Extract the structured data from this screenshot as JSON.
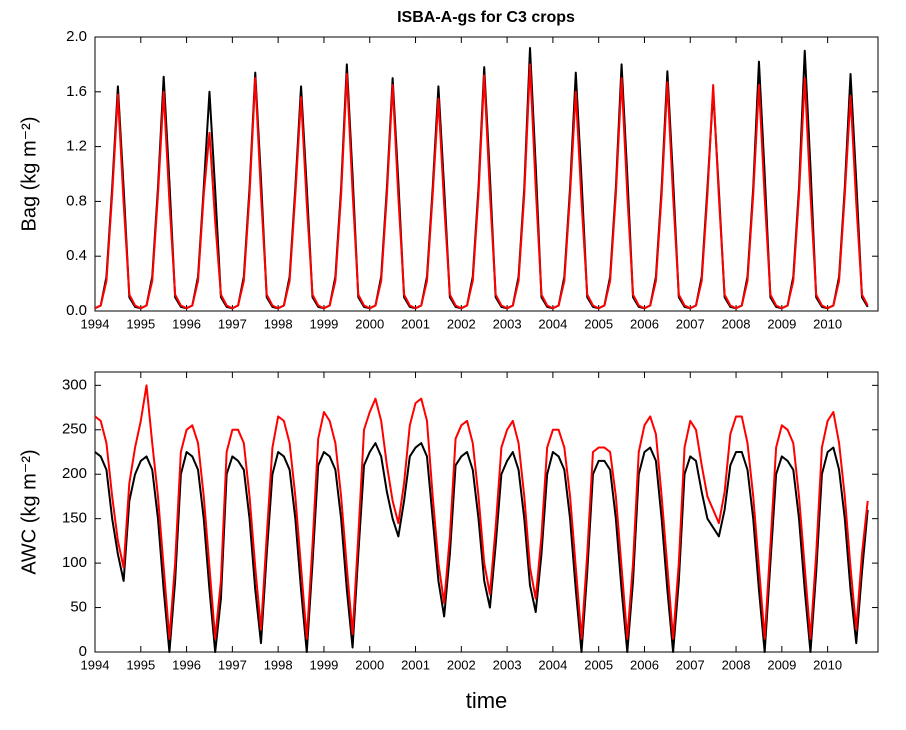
{
  "chart_data": [
    {
      "type": "line",
      "title": "ISBA-A-gs for C3 crops",
      "ylabel": "Bag (kg m⁻²)",
      "xlim": [
        1994,
        2011.1
      ],
      "xticks": [
        1994,
        1995,
        1996,
        1997,
        1998,
        1999,
        2000,
        2001,
        2002,
        2003,
        2004,
        2005,
        2006,
        2007,
        2008,
        2009,
        2010
      ],
      "ylim": [
        0,
        2
      ],
      "yticks": [
        {
          "value": 0,
          "label": "0.0"
        },
        0.4,
        0.8,
        1.2,
        1.6,
        {
          "value": 2,
          "label": "2.0"
        }
      ],
      "x": [
        1994,
        1994.125,
        1994.25,
        1994.375,
        1994.5,
        1994.625,
        1994.75,
        1994.875,
        1995,
        1995.125,
        1995.25,
        1995.375,
        1995.5,
        1995.625,
        1995.75,
        1995.875,
        1996,
        1996.125,
        1996.25,
        1996.375,
        1996.5,
        1996.625,
        1996.75,
        1996.875,
        1997,
        1997.125,
        1997.25,
        1997.375,
        1997.5,
        1997.625,
        1997.75,
        1997.875,
        1998,
        1998.125,
        1998.25,
        1998.375,
        1998.5,
        1998.625,
        1998.75,
        1998.875,
        1999,
        1999.125,
        1999.25,
        1999.375,
        1999.5,
        1999.625,
        1999.75,
        1999.875,
        2000,
        2000.125,
        2000.25,
        2000.375,
        2000.5,
        2000.625,
        2000.75,
        2000.875,
        2001,
        2001.125,
        2001.25,
        2001.375,
        2001.5,
        2001.625,
        2001.75,
        2001.875,
        2002,
        2002.125,
        2002.25,
        2002.375,
        2002.5,
        2002.625,
        2002.75,
        2002.875,
        2003,
        2003.125,
        2003.25,
        2003.375,
        2003.5,
        2003.625,
        2003.75,
        2003.875,
        2004,
        2004.125,
        2004.25,
        2004.375,
        2004.5,
        2004.625,
        2004.75,
        2004.875,
        2005,
        2005.125,
        2005.25,
        2005.375,
        2005.5,
        2005.625,
        2005.75,
        2005.875,
        2006,
        2006.125,
        2006.25,
        2006.375,
        2006.5,
        2006.625,
        2006.75,
        2006.875,
        2007,
        2007.125,
        2007.25,
        2007.375,
        2007.5,
        2007.625,
        2007.75,
        2007.875,
        2008,
        2008.125,
        2008.25,
        2008.375,
        2008.5,
        2008.625,
        2008.75,
        2008.875,
        2009,
        2009.125,
        2009.25,
        2009.375,
        2009.5,
        2009.625,
        2009.75,
        2009.875,
        2010,
        2010.125,
        2010.25,
        2010.375,
        2010.5,
        2010.625,
        2010.75,
        2010.875
      ],
      "series": [
        {
          "color": "#000000",
          "values": [
            0.02,
            0.04,
            0.25,
            0.9,
            1.64,
            0.9,
            0.1,
            0.03,
            0.02,
            0.04,
            0.25,
            0.9,
            1.71,
            0.94,
            0.1,
            0.03,
            0.02,
            0.04,
            0.25,
            0.9,
            1.6,
            0.88,
            0.1,
            0.03,
            0.02,
            0.04,
            0.25,
            0.9,
            1.74,
            0.96,
            0.1,
            0.03,
            0.02,
            0.04,
            0.25,
            0.9,
            1.64,
            0.9,
            0.1,
            0.03,
            0.02,
            0.04,
            0.25,
            0.9,
            1.8,
            0.99,
            0.1,
            0.03,
            0.02,
            0.04,
            0.25,
            0.9,
            1.7,
            0.94,
            0.1,
            0.03,
            0.02,
            0.04,
            0.25,
            0.9,
            1.64,
            0.9,
            0.1,
            0.03,
            0.02,
            0.04,
            0.25,
            0.9,
            1.78,
            0.98,
            0.1,
            0.03,
            0.02,
            0.04,
            0.25,
            0.9,
            1.92,
            1.06,
            0.1,
            0.03,
            0.02,
            0.04,
            0.25,
            0.9,
            1.74,
            0.96,
            0.1,
            0.03,
            0.02,
            0.04,
            0.25,
            0.9,
            1.8,
            0.99,
            0.1,
            0.03,
            0.02,
            0.04,
            0.25,
            0.9,
            1.75,
            0.96,
            0.1,
            0.03,
            0.02,
            0.04,
            0.25,
            0.9,
            1.6,
            0.88,
            0.1,
            0.03,
            0.02,
            0.04,
            0.25,
            0.9,
            1.82,
            1.0,
            0.1,
            0.03,
            0.02,
            0.04,
            0.25,
            0.9,
            1.9,
            1.05,
            0.1,
            0.03,
            0.02,
            0.04,
            0.25,
            0.9,
            1.73,
            0.95,
            0.1,
            0.03
          ]
        },
        {
          "color": "#ff0000",
          "values": [
            0.02,
            0.04,
            0.22,
            0.85,
            1.58,
            0.79,
            0.12,
            0.04,
            0.02,
            0.04,
            0.22,
            0.85,
            1.6,
            0.8,
            0.12,
            0.04,
            0.02,
            0.04,
            0.22,
            0.85,
            1.3,
            0.65,
            0.12,
            0.04,
            0.02,
            0.04,
            0.22,
            0.85,
            1.7,
            0.85,
            0.12,
            0.04,
            0.02,
            0.04,
            0.22,
            0.85,
            1.56,
            0.78,
            0.12,
            0.04,
            0.02,
            0.04,
            0.22,
            0.85,
            1.73,
            0.87,
            0.12,
            0.04,
            0.02,
            0.04,
            0.22,
            0.85,
            1.65,
            0.83,
            0.12,
            0.04,
            0.02,
            0.04,
            0.22,
            0.85,
            1.55,
            0.78,
            0.12,
            0.04,
            0.02,
            0.04,
            0.22,
            0.85,
            1.72,
            0.86,
            0.12,
            0.04,
            0.02,
            0.04,
            0.22,
            0.85,
            1.8,
            0.9,
            0.12,
            0.04,
            0.02,
            0.04,
            0.22,
            0.85,
            1.6,
            0.8,
            0.12,
            0.04,
            0.02,
            0.04,
            0.22,
            0.85,
            1.7,
            0.85,
            0.12,
            0.04,
            0.02,
            0.04,
            0.22,
            0.85,
            1.67,
            0.84,
            0.12,
            0.04,
            0.02,
            0.04,
            0.22,
            0.85,
            1.65,
            0.83,
            0.12,
            0.04,
            0.02,
            0.04,
            0.22,
            0.85,
            1.65,
            0.83,
            0.12,
            0.04,
            0.02,
            0.04,
            0.22,
            0.85,
            1.7,
            0.85,
            0.12,
            0.04,
            0.02,
            0.04,
            0.22,
            0.85,
            1.57,
            0.79,
            0.12,
            0.04
          ]
        }
      ]
    },
    {
      "type": "line",
      "ylabel": "AWC (kg m⁻²)",
      "xlabel": "time",
      "xlim": [
        1994,
        2011.1
      ],
      "xticks": [
        1994,
        1995,
        1996,
        1997,
        1998,
        1999,
        2000,
        2001,
        2002,
        2003,
        2004,
        2005,
        2006,
        2007,
        2008,
        2009,
        2010
      ],
      "ylim": [
        0,
        315
      ],
      "yticks": [
        0,
        50,
        100,
        150,
        200,
        250,
        300
      ],
      "x": [
        1994,
        1994.125,
        1994.25,
        1994.375,
        1994.5,
        1994.625,
        1994.75,
        1994.875,
        1995,
        1995.125,
        1995.25,
        1995.375,
        1995.5,
        1995.625,
        1995.75,
        1995.875,
        1996,
        1996.125,
        1996.25,
        1996.375,
        1996.5,
        1996.625,
        1996.75,
        1996.875,
        1997,
        1997.125,
        1997.25,
        1997.375,
        1997.5,
        1997.625,
        1997.75,
        1997.875,
        1998,
        1998.125,
        1998.25,
        1998.375,
        1998.5,
        1998.625,
        1998.75,
        1998.875,
        1999,
        1999.125,
        1999.25,
        1999.375,
        1999.5,
        1999.625,
        1999.75,
        1999.875,
        2000,
        2000.125,
        2000.25,
        2000.375,
        2000.5,
        2000.625,
        2000.75,
        2000.875,
        2001,
        2001.125,
        2001.25,
        2001.375,
        2001.5,
        2001.625,
        2001.75,
        2001.875,
        2002,
        2002.125,
        2002.25,
        2002.375,
        2002.5,
        2002.625,
        2002.75,
        2002.875,
        2003,
        2003.125,
        2003.25,
        2003.375,
        2003.5,
        2003.625,
        2003.75,
        2003.875,
        2004,
        2004.125,
        2004.25,
        2004.375,
        2004.5,
        2004.625,
        2004.75,
        2004.875,
        2005,
        2005.125,
        2005.25,
        2005.375,
        2005.5,
        2005.625,
        2005.75,
        2005.875,
        2006,
        2006.125,
        2006.25,
        2006.375,
        2006.5,
        2006.625,
        2006.75,
        2006.875,
        2007,
        2007.125,
        2007.25,
        2007.375,
        2007.5,
        2007.625,
        2007.75,
        2007.875,
        2008,
        2008.125,
        2008.25,
        2008.375,
        2008.5,
        2008.625,
        2008.75,
        2008.875,
        2009,
        2009.125,
        2009.25,
        2009.375,
        2009.5,
        2009.625,
        2009.75,
        2009.875,
        2010,
        2010.125,
        2010.25,
        2010.375,
        2010.5,
        2010.625,
        2010.75,
        2010.875
      ],
      "series": [
        {
          "color": "#000000",
          "values": [
            225,
            220,
            205,
            150,
            110,
            80,
            170,
            200,
            215,
            220,
            205,
            150,
            70,
            0,
            80,
            200,
            225,
            220,
            205,
            150,
            70,
            0,
            60,
            200,
            220,
            215,
            205,
            150,
            70,
            10,
            110,
            200,
            225,
            220,
            205,
            150,
            70,
            0,
            100,
            210,
            225,
            220,
            205,
            150,
            70,
            5,
            110,
            210,
            225,
            235,
            220,
            180,
            150,
            130,
            170,
            220,
            230,
            235,
            220,
            150,
            80,
            40,
            110,
            210,
            220,
            225,
            205,
            150,
            80,
            50,
            120,
            200,
            215,
            225,
            205,
            150,
            75,
            45,
            110,
            200,
            225,
            220,
            205,
            150,
            70,
            0,
            90,
            200,
            215,
            215,
            205,
            150,
            70,
            0,
            80,
            200,
            225,
            230,
            215,
            150,
            70,
            0,
            80,
            200,
            220,
            215,
            180,
            150,
            140,
            130,
            160,
            210,
            225,
            225,
            205,
            150,
            70,
            0,
            100,
            200,
            220,
            215,
            205,
            150,
            70,
            0,
            90,
            200,
            225,
            230,
            205,
            150,
            70,
            10,
            90,
            160
          ]
        },
        {
          "color": "#ff0000",
          "values": [
            265,
            260,
            235,
            175,
            125,
            95,
            190,
            230,
            260,
            300,
            235,
            175,
            95,
            15,
            100,
            225,
            250,
            255,
            235,
            175,
            95,
            15,
            80,
            225,
            250,
            250,
            235,
            175,
            95,
            25,
            130,
            230,
            265,
            260,
            235,
            175,
            95,
            15,
            120,
            240,
            270,
            260,
            235,
            175,
            95,
            20,
            130,
            250,
            270,
            285,
            260,
            210,
            170,
            145,
            190,
            255,
            280,
            285,
            260,
            175,
            100,
            55,
            130,
            240,
            255,
            260,
            235,
            175,
            100,
            65,
            140,
            230,
            250,
            260,
            235,
            175,
            95,
            60,
            130,
            230,
            250,
            250,
            230,
            175,
            95,
            15,
            110,
            225,
            230,
            230,
            225,
            175,
            95,
            15,
            100,
            225,
            255,
            265,
            245,
            175,
            95,
            15,
            100,
            230,
            260,
            250,
            210,
            175,
            160,
            145,
            180,
            245,
            265,
            265,
            235,
            175,
            95,
            15,
            120,
            230,
            255,
            250,
            235,
            175,
            95,
            15,
            110,
            230,
            260,
            270,
            235,
            175,
            95,
            25,
            110,
            170
          ]
        }
      ]
    }
  ]
}
